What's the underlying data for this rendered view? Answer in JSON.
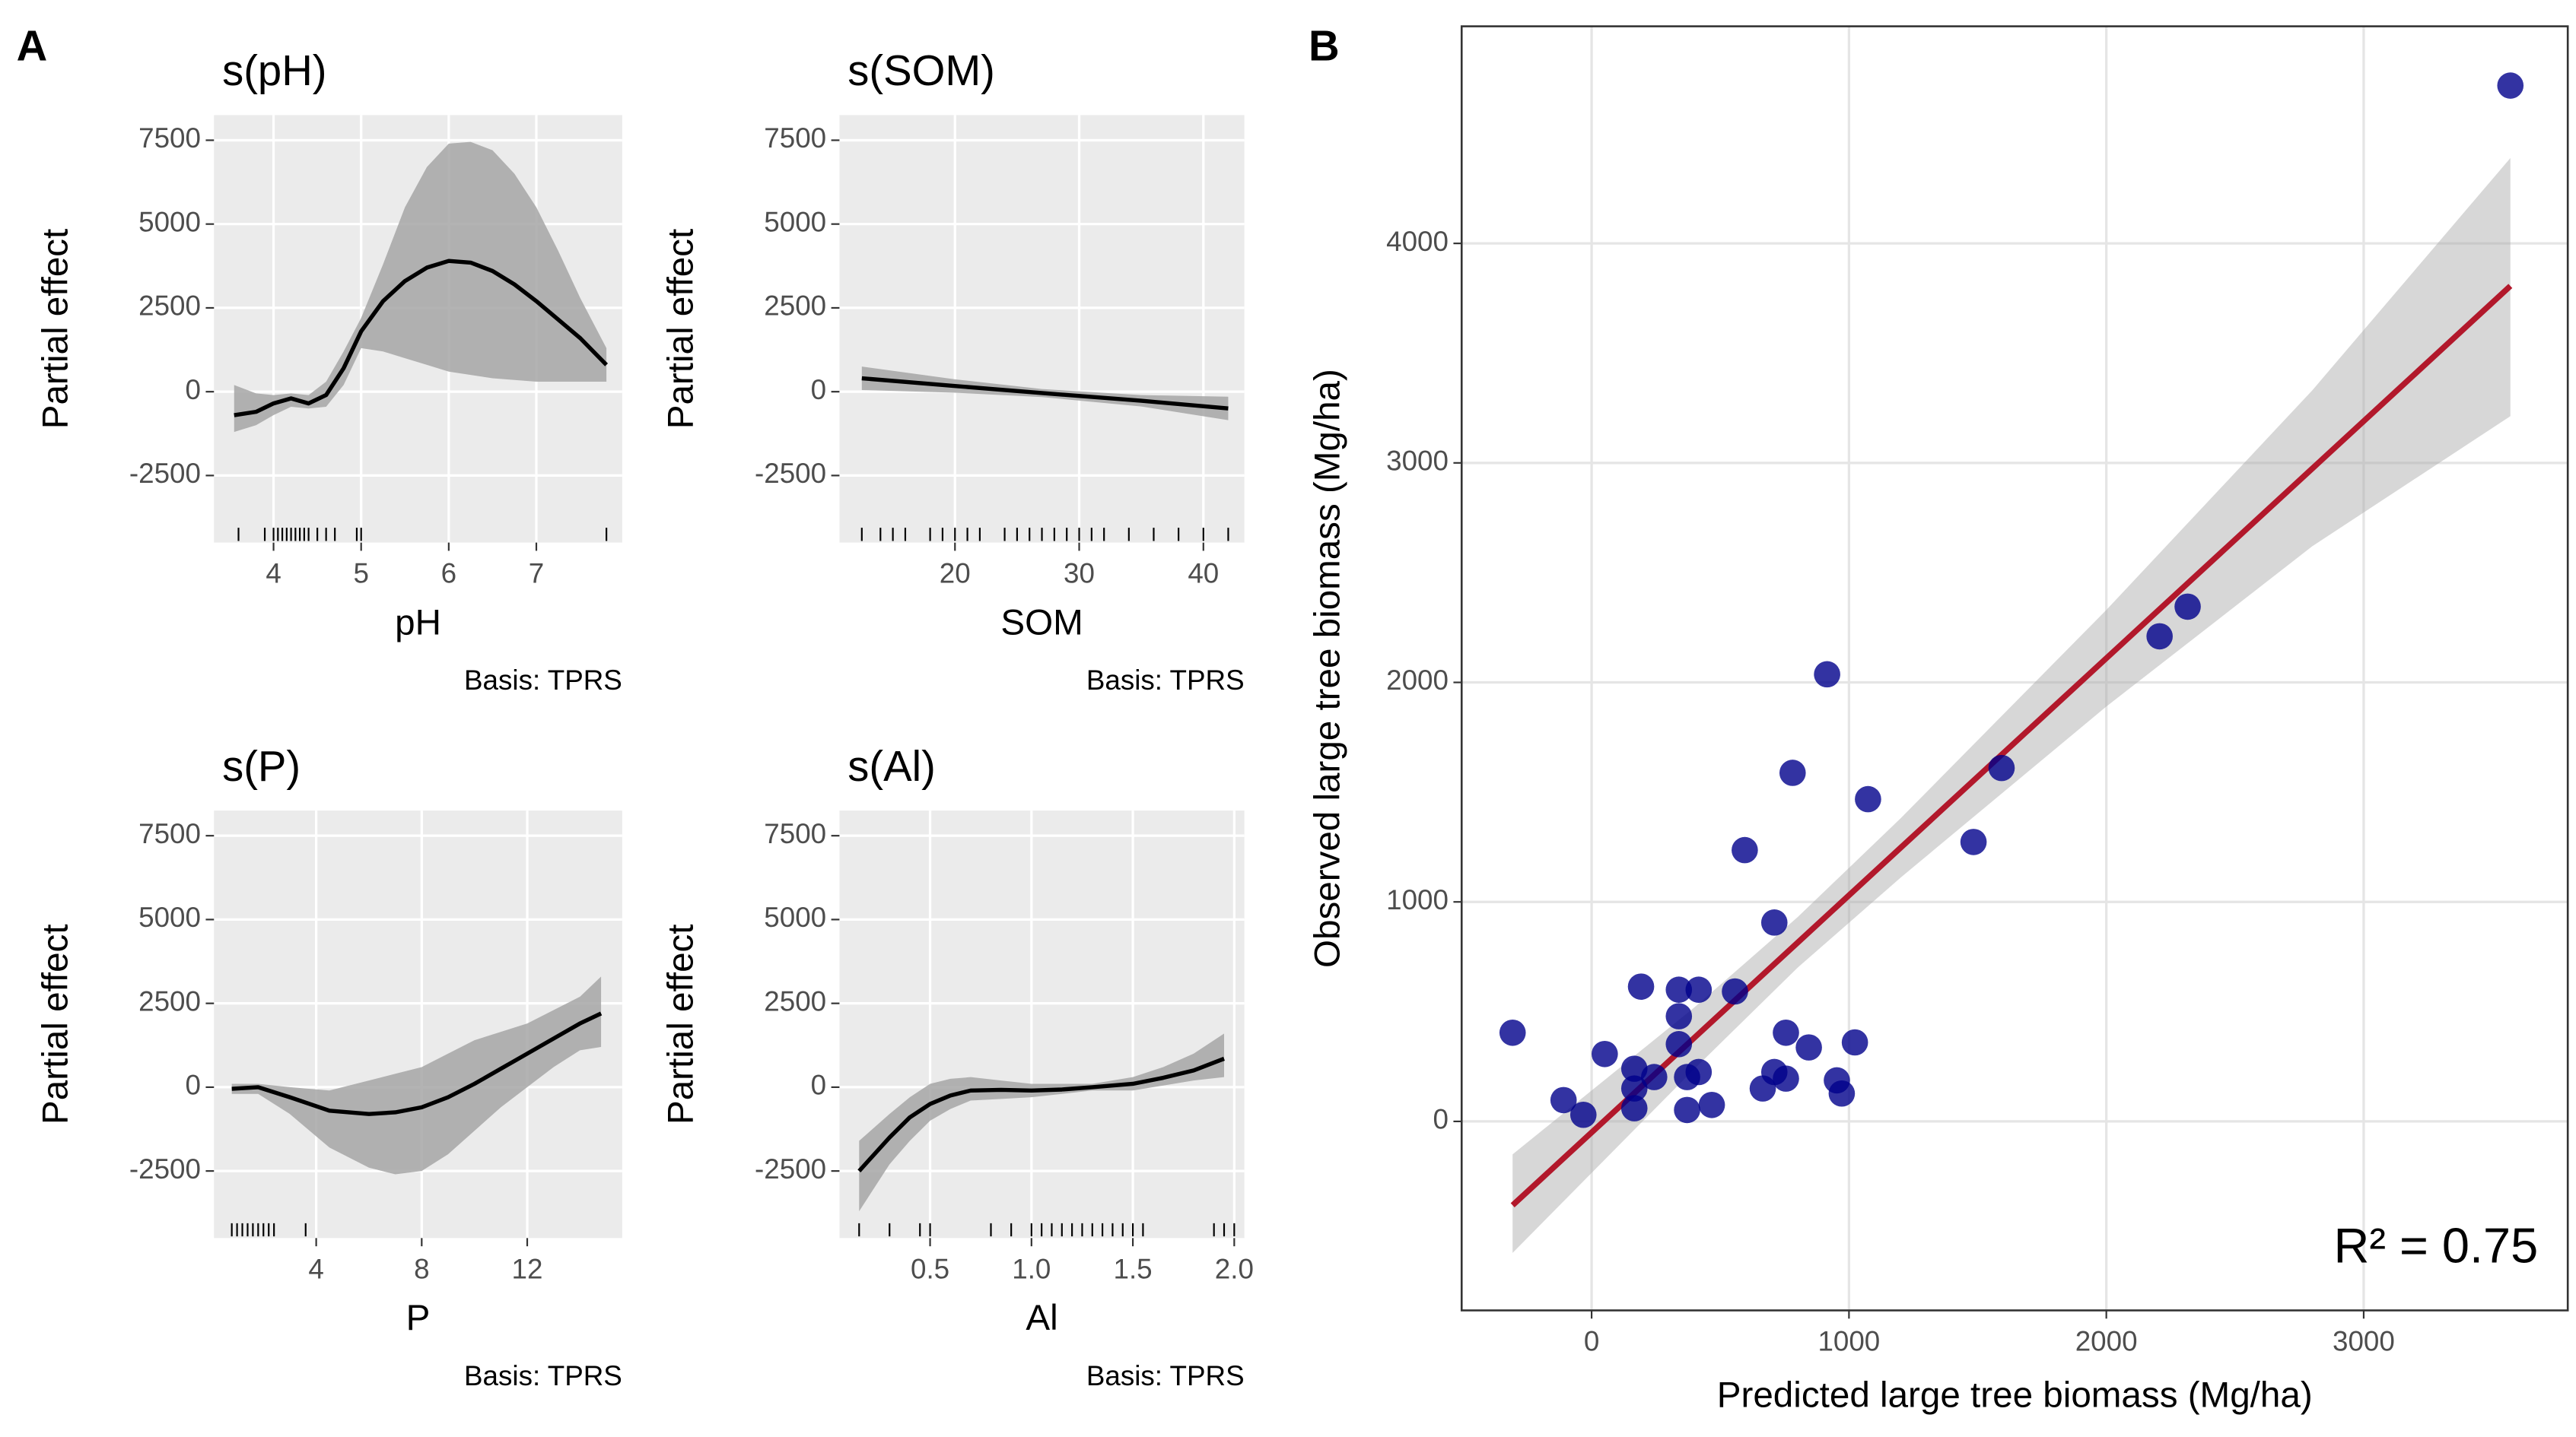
{
  "panel_labels": [
    "A",
    "B"
  ],
  "chart_data": [
    {
      "type": "smooth",
      "title": "s(pH)",
      "xlabel": "pH",
      "ylabel": "Partial effect",
      "caption": "Basis: TPRS",
      "x": [
        3.55,
        3.8,
        4.0,
        4.2,
        4.4,
        4.6,
        4.8,
        5.0,
        5.25,
        5.5,
        5.75,
        6.0,
        6.25,
        6.5,
        6.75,
        7.0,
        7.25,
        7.5,
        7.8
      ],
      "values": [
        -700,
        -600,
        -350,
        -200,
        -350,
        -100,
        700,
        1800,
        2700,
        3300,
        3700,
        3900,
        3850,
        3600,
        3200,
        2700,
        2150,
        1600,
        800
      ],
      "upper": [
        200,
        -50,
        -100,
        -50,
        -100,
        300,
        1200,
        2200,
        3800,
        5500,
        6700,
        7400,
        7450,
        7200,
        6500,
        5500,
        4200,
        2800,
        1300
      ],
      "lower": [
        -1200,
        -1000,
        -700,
        -450,
        -500,
        -450,
        200,
        1300,
        1200,
        1000,
        800,
        600,
        500,
        400,
        350,
        300,
        300,
        300,
        300
      ],
      "rug": [
        3.6,
        3.9,
        4.0,
        4.05,
        4.1,
        4.15,
        4.2,
        4.25,
        4.3,
        4.35,
        4.4,
        4.5,
        4.6,
        4.7,
        4.95,
        5.0,
        7.8
      ],
      "xlim": [
        3.32,
        7.98
      ],
      "ylim": [
        -4500,
        8250
      ],
      "xticks": [
        4,
        5,
        6,
        7
      ],
      "yticks": [
        -2500,
        0,
        2500,
        5000,
        7500
      ],
      "color": "#000000",
      "band_color": "#a6a6a6",
      "background": "#ebebeb",
      "grid": true
    },
    {
      "type": "smooth",
      "title": "s(SOM)",
      "xlabel": "SOM",
      "ylabel": "Partial effect",
      "caption": "Basis: TPRS",
      "x": [
        12.5,
        20,
        27,
        35,
        42
      ],
      "values": [
        400,
        170,
        -40,
        -270,
        -500
      ],
      "upper": [
        750,
        370,
        80,
        -100,
        -150
      ],
      "lower": [
        50,
        -30,
        -160,
        -440,
        -850
      ],
      "rug": [
        12.5,
        14,
        15,
        16,
        18,
        19,
        20,
        21,
        22,
        24,
        25,
        26,
        27,
        28,
        29,
        30,
        31,
        32,
        34,
        36,
        38,
        40,
        42
      ],
      "xlim": [
        10.7,
        43.3
      ],
      "ylim": [
        -4500,
        8250
      ],
      "xticks": [
        20,
        30,
        40
      ],
      "yticks": [
        -2500,
        0,
        2500,
        5000,
        7500
      ],
      "color": "#000000",
      "band_color": "#a6a6a6",
      "background": "#ebebeb",
      "grid": true
    },
    {
      "type": "smooth",
      "title": "s(P)",
      "xlabel": "P",
      "ylabel": "Partial effect",
      "caption": "Basis: TPRS",
      "x": [
        0.8,
        1.8,
        3,
        4.5,
        6,
        7,
        8,
        9,
        10,
        11,
        12,
        13,
        14,
        14.8
      ],
      "values": [
        -50,
        0,
        -300,
        -700,
        -800,
        -750,
        -600,
        -300,
        100,
        550,
        1000,
        1450,
        1900,
        2200
      ],
      "upper": [
        100,
        100,
        0,
        -100,
        200,
        400,
        600,
        1000,
        1400,
        1650,
        1900,
        2300,
        2700,
        3300
      ],
      "lower": [
        -200,
        -200,
        -800,
        -1800,
        -2400,
        -2600,
        -2500,
        -2000,
        -1300,
        -600,
        0,
        600,
        1100,
        1200
      ],
      "rug": [
        0.8,
        1.0,
        1.2,
        1.4,
        1.6,
        1.8,
        2.0,
        2.2,
        2.4,
        3.6
      ],
      "xlim": [
        0.125,
        15.6
      ],
      "ylim": [
        -4500,
        8250
      ],
      "xticks": [
        4,
        8,
        12
      ],
      "yticks": [
        -2500,
        0,
        2500,
        5000,
        7500
      ],
      "color": "#000000",
      "band_color": "#a6a6a6",
      "background": "#ebebeb",
      "grid": true
    },
    {
      "type": "smooth",
      "title": "s(Al)",
      "xlabel": "Al",
      "ylabel": "Partial effect",
      "caption": "Basis: TPRS",
      "x": [
        0.15,
        0.3,
        0.4,
        0.5,
        0.6,
        0.7,
        0.85,
        1.0,
        1.15,
        1.3,
        1.5,
        1.65,
        1.8,
        1.95
      ],
      "values": [
        -2500,
        -1500,
        -900,
        -500,
        -250,
        -100,
        -80,
        -100,
        -70,
        0,
        100,
        280,
        500,
        850
      ],
      "upper": [
        -1600,
        -800,
        -300,
        100,
        250,
        300,
        200,
        100,
        100,
        100,
        300,
        600,
        1000,
        1600
      ],
      "lower": [
        -3700,
        -2300,
        -1600,
        -1000,
        -650,
        -400,
        -350,
        -300,
        -200,
        -100,
        -100,
        50,
        200,
        300
      ],
      "rug": [
        0.15,
        0.3,
        0.45,
        0.5,
        0.8,
        0.9,
        1.0,
        1.05,
        1.1,
        1.15,
        1.2,
        1.25,
        1.3,
        1.35,
        1.4,
        1.45,
        1.5,
        1.55,
        1.9,
        1.95,
        2.0
      ],
      "xlim": [
        0.053,
        2.05
      ],
      "ylim": [
        -4500,
        8250
      ],
      "xticks": [
        0.5,
        {
          "value": 1,
          "label": "1.0"
        },
        1.5,
        {
          "value": 2,
          "label": "2.0"
        }
      ],
      "yticks": [
        -2500,
        0,
        2500,
        5000,
        7500
      ],
      "color": "#000000",
      "band_color": "#a6a6a6",
      "background": "#ebebeb",
      "grid": true
    },
    {
      "type": "scatter",
      "xlabel": "Predicted large tree biomass (Mg/ha)",
      "ylabel": "Observed large tree biomass (Mg/ha)",
      "annotation": "R² = 0.75",
      "x": [
        -307,
        -109,
        -32,
        51,
        166,
        192,
        166,
        166,
        243,
        339,
        339,
        339,
        371,
        371,
        416,
        416,
        467,
        557,
        595,
        665,
        710,
        710,
        755,
        755,
        781,
        844,
        915,
        953,
        972,
        1023,
        1074,
        1484,
        1593,
        2207,
        2316,
        3570
      ],
      "values": [
        404,
        97,
        30,
        307,
        240,
        614,
        150,
        60,
        202,
        600,
        352,
        479,
        202,
        52,
        600,
        225,
        75,
        592,
        1236,
        150,
        906,
        225,
        404,
        195,
        1588,
        337,
        2037,
        187,
        127,
        360,
        1468,
        1273,
        1610,
        2210,
        2345,
        4719
      ],
      "color": "#00008b",
      "fit": {
        "x": [
          -307,
          400,
          800,
          1200,
          2000,
          2800,
          3570
        ],
        "values": [
          -382,
          382,
          814,
          1246,
          2110,
          2974,
          3806
        ],
        "upper": [
          -150,
          520,
          930,
          1380,
          2330,
          3330,
          4389
        ],
        "lower": [
          -599,
          240,
          700,
          1110,
          1890,
          2620,
          3213
        ],
        "color": "#b2182b"
      },
      "band_color": "#a6a6a6",
      "background": "#ffffff",
      "xlim": [
        -505,
        3793
      ],
      "ylim": [
        -861,
        4989
      ],
      "xticks": [
        0,
        1000,
        2000,
        3000
      ],
      "yticks": [
        0,
        1000,
        2000,
        3000,
        4000
      ],
      "grid": true
    }
  ]
}
